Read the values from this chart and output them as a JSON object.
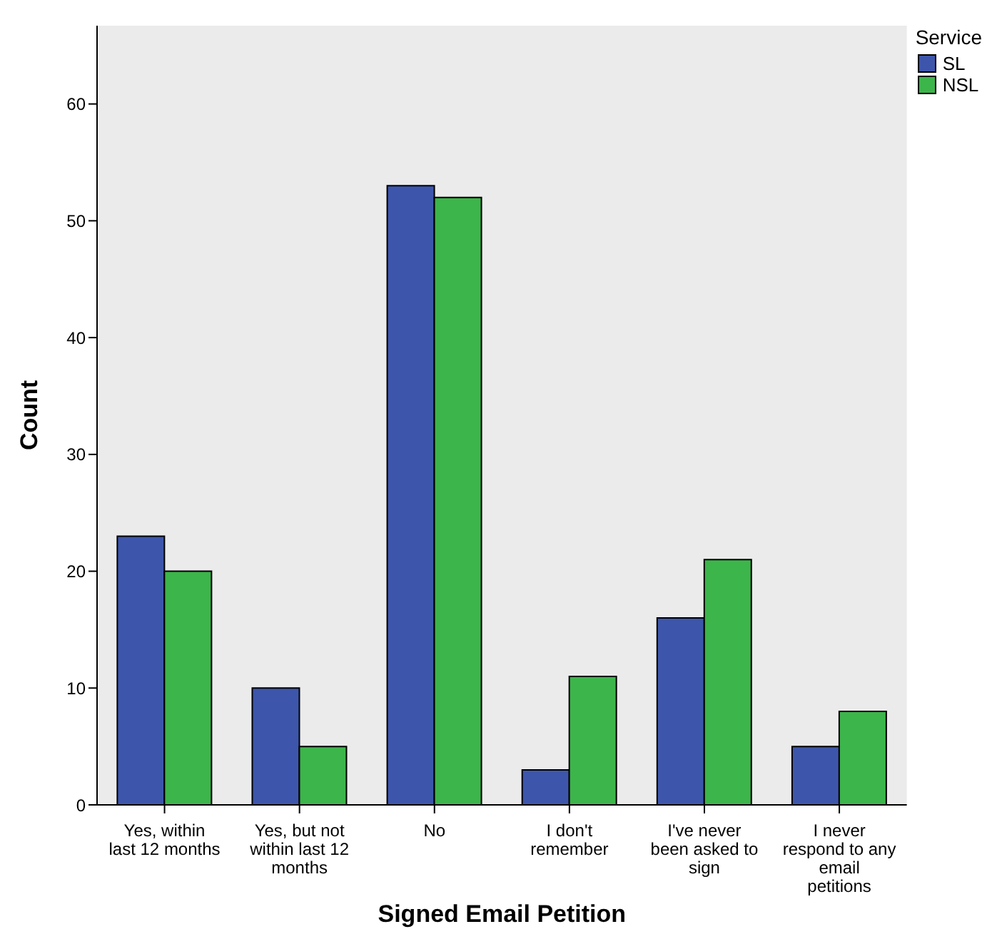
{
  "chart_data": {
    "type": "bar",
    "xlabel": "Signed Email Petition",
    "ylabel": "Count",
    "legend_title": "Service",
    "categories": [
      "Yes, within last 12 months",
      "Yes, but not within last 12 months",
      "No",
      "I don't remember",
      "I've never been asked to sign",
      "I never respond to any email petitions"
    ],
    "series": [
      {
        "name": "SL",
        "color": "#3d56ab",
        "values": [
          23,
          10,
          53,
          3,
          16,
          5
        ]
      },
      {
        "name": "NSL",
        "color": "#3cb54a",
        "values": [
          20,
          5,
          52,
          11,
          21,
          8
        ]
      }
    ],
    "ylim": [
      0,
      66.7
    ],
    "yticks": [
      0,
      10,
      20,
      30,
      40,
      50,
      60
    ],
    "grid": false,
    "legend": "top right"
  }
}
